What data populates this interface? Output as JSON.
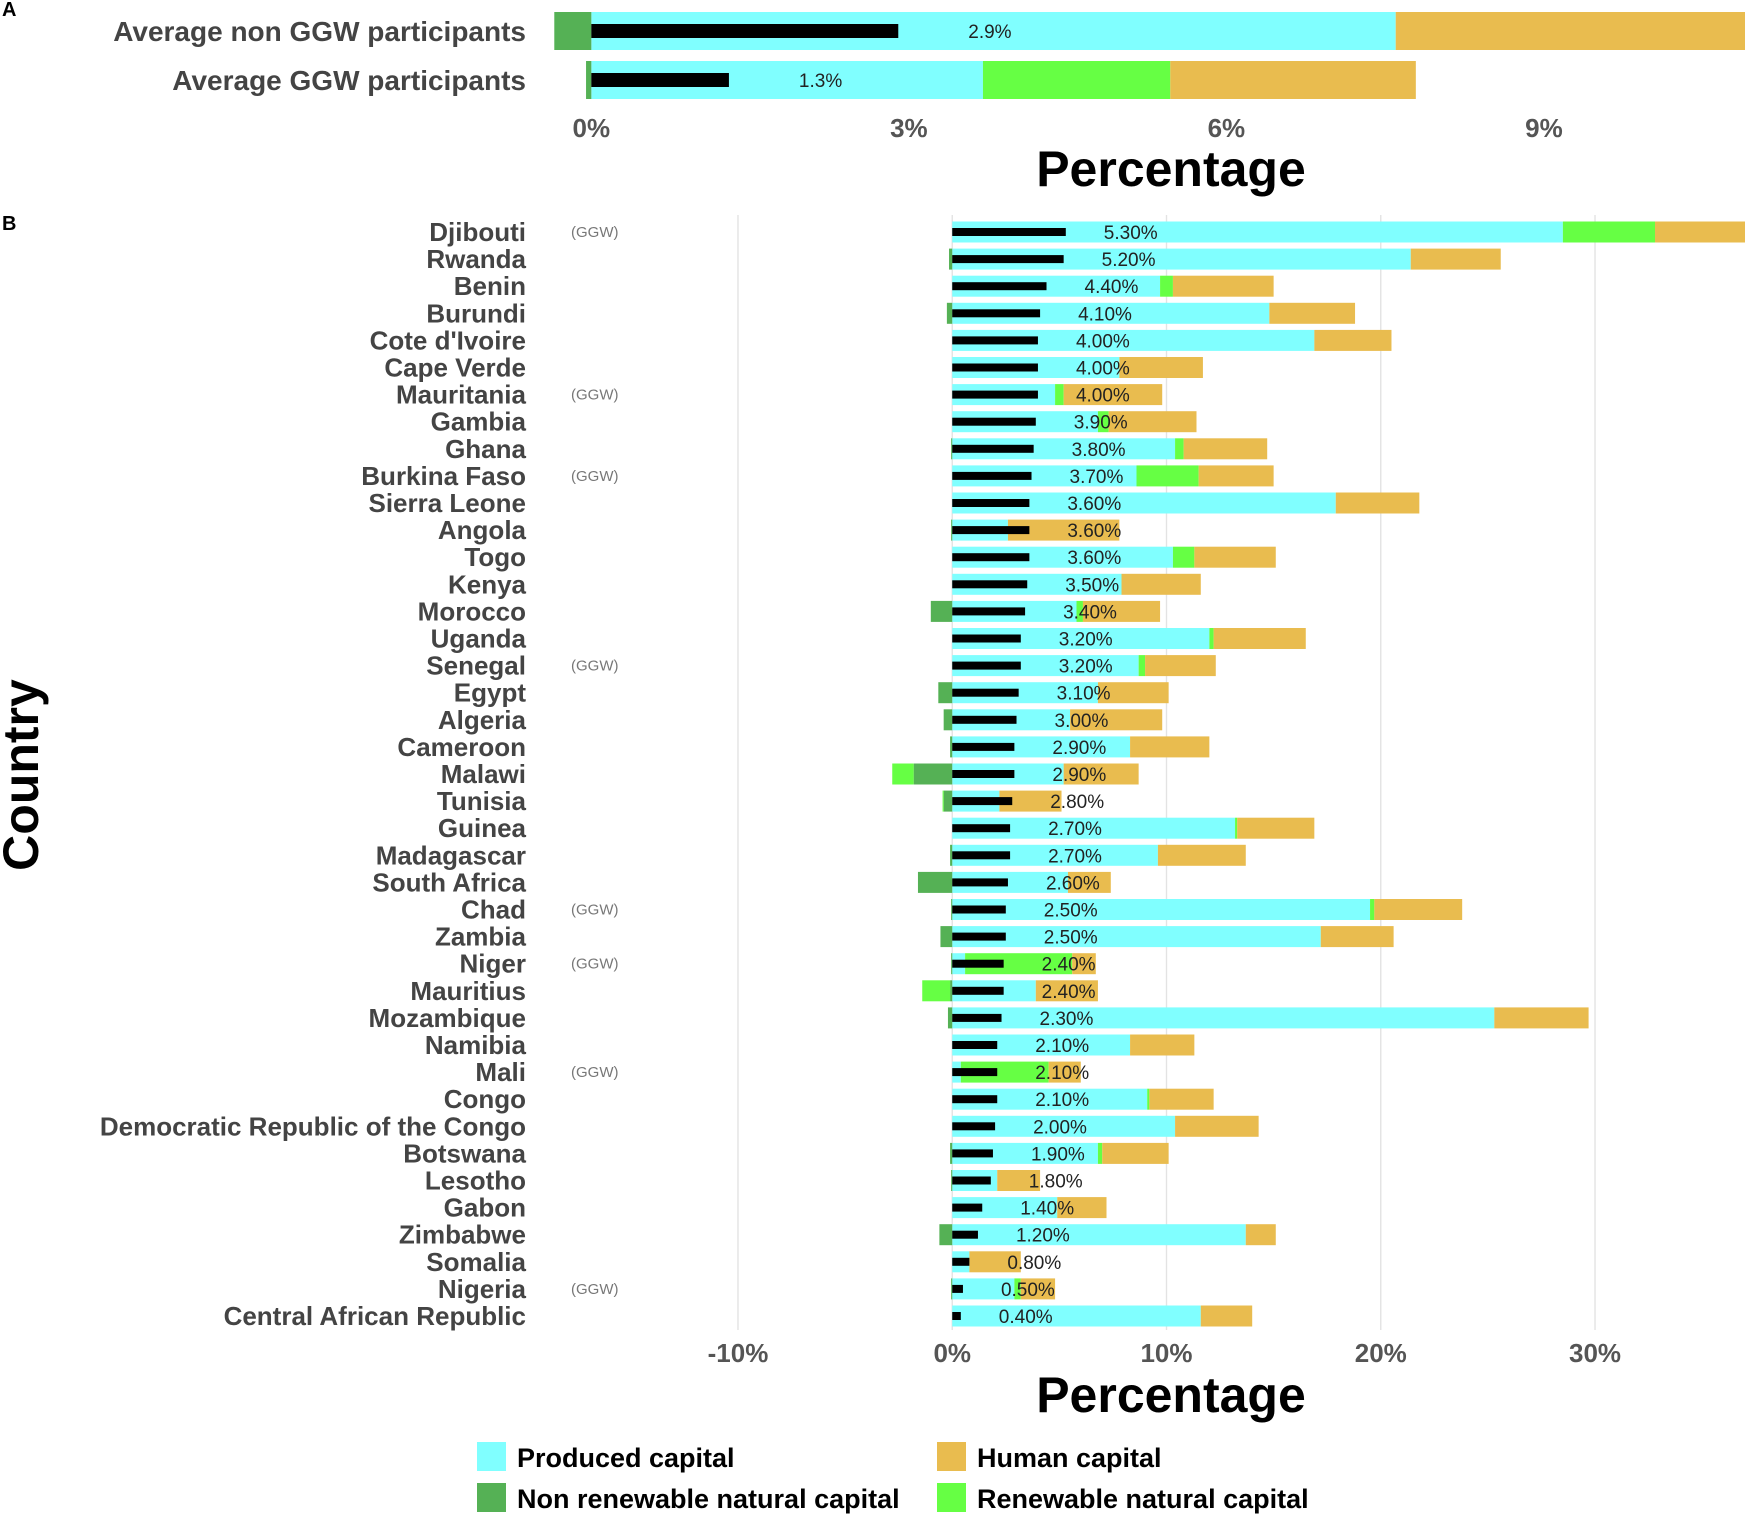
{
  "chart_data": [
    {
      "panel": "A",
      "type": "bar",
      "orientation": "horizontal",
      "stacked": true,
      "xlabel": "Percentage",
      "xlim": [
        -0.4,
        10.9
      ],
      "xticks": [
        0,
        3,
        6,
        9
      ],
      "xtick_labels": [
        "0%",
        "3%",
        "6%",
        "9%"
      ],
      "grid": false,
      "components": [
        {
          "key": "nonrenewable",
          "name": "Non renewable natural capital"
        },
        {
          "key": "produced",
          "name": "Produced capital"
        },
        {
          "key": "renewable",
          "name": "Renewable natural capital"
        },
        {
          "key": "human",
          "name": "Human capital"
        }
      ],
      "categories": [
        {
          "name": "Average non GGW participants",
          "ggw": "",
          "label": "2.9%",
          "total": 2.9,
          "nonrenewable": -0.35,
          "produced": 7.6,
          "renewable": 0.0,
          "human": 3.3
        },
        {
          "name": "Average GGW participants",
          "ggw": "",
          "label": "1.3%",
          "total": 1.3,
          "nonrenewable": -0.05,
          "produced": 3.7,
          "renewable": 1.77,
          "human": 2.32
        }
      ]
    },
    {
      "panel": "B",
      "type": "bar",
      "orientation": "horizontal",
      "stacked": true,
      "xlabel": "Percentage",
      "ylabel": "Country",
      "xlim": [
        -17,
        37
      ],
      "xticks": [
        -10,
        0,
        10,
        20,
        30
      ],
      "xtick_labels": [
        "-10%",
        "0%",
        "10%",
        "20%",
        "30%"
      ],
      "grid": true,
      "components": [
        {
          "key": "nonrenewable",
          "name": "Non renewable natural capital"
        },
        {
          "key": "produced",
          "name": "Produced capital"
        },
        {
          "key": "renewable",
          "name": "Renewable natural capital"
        },
        {
          "key": "human",
          "name": "Human capital"
        }
      ],
      "categories": [
        {
          "name": "Djibouti",
          "ggw": "(GGW)",
          "label": "5.30%",
          "total": 5.3,
          "nonrenewable": 0,
          "produced": 28.5,
          "renewable": 4.3,
          "human": 4.2
        },
        {
          "name": "Rwanda",
          "ggw": "",
          "label": "5.20%",
          "total": 5.2,
          "nonrenewable": -0.15,
          "produced": 21.4,
          "renewable": 0,
          "human": 4.2
        },
        {
          "name": "Benin",
          "ggw": "",
          "label": "4.40%",
          "total": 4.4,
          "nonrenewable": 0,
          "produced": 9.7,
          "renewable": 0.6,
          "human": 4.7
        },
        {
          "name": "Burundi",
          "ggw": "",
          "label": "4.10%",
          "total": 4.1,
          "nonrenewable": -0.25,
          "produced": 14.8,
          "renewable": 0,
          "human": 4.0
        },
        {
          "name": "Cote d'Ivoire",
          "ggw": "",
          "label": "4.00%",
          "total": 4.0,
          "nonrenewable": 0,
          "produced": 16.9,
          "renewable": 0,
          "human": 3.6
        },
        {
          "name": "Cape Verde",
          "ggw": "",
          "label": "4.00%",
          "total": 4.0,
          "nonrenewable": 0,
          "produced": 7.8,
          "renewable": 0,
          "human": 3.9
        },
        {
          "name": "Mauritania",
          "ggw": "(GGW)",
          "label": "4.00%",
          "total": 4.0,
          "nonrenewable": 0,
          "produced": 4.8,
          "renewable": 0.4,
          "human": 4.6
        },
        {
          "name": "Gambia",
          "ggw": "",
          "label": "3.90%",
          "total": 3.9,
          "nonrenewable": 0,
          "produced": 6.8,
          "renewable": 0.5,
          "human": 4.1
        },
        {
          "name": "Ghana",
          "ggw": "",
          "label": "3.80%",
          "total": 3.8,
          "nonrenewable": -0.05,
          "produced": 10.4,
          "renewable": 0.4,
          "human": 3.9
        },
        {
          "name": "Burkina Faso",
          "ggw": "(GGW)",
          "label": "3.70%",
          "total": 3.7,
          "nonrenewable": 0,
          "produced": 8.6,
          "renewable": 2.9,
          "human": 3.5
        },
        {
          "name": "Sierra Leone",
          "ggw": "",
          "label": "3.60%",
          "total": 3.6,
          "nonrenewable": 0,
          "produced": 17.9,
          "renewable": 0,
          "human": 3.9
        },
        {
          "name": "Angola",
          "ggw": "",
          "label": "3.60%",
          "total": 3.6,
          "nonrenewable": -0.05,
          "produced": 2.6,
          "renewable": 0,
          "human": 5.2
        },
        {
          "name": "Togo",
          "ggw": "",
          "label": "3.60%",
          "total": 3.6,
          "nonrenewable": 0,
          "produced": 10.3,
          "renewable": 1.0,
          "human": 3.8
        },
        {
          "name": "Kenya",
          "ggw": "",
          "label": "3.50%",
          "total": 3.5,
          "nonrenewable": 0,
          "produced": 7.9,
          "renewable": 0,
          "human": 3.7
        },
        {
          "name": "Morocco",
          "ggw": "",
          "label": "3.40%",
          "total": 3.4,
          "nonrenewable": -1.0,
          "produced": 5.8,
          "renewable": 0.3,
          "human": 3.6
        },
        {
          "name": "Uganda",
          "ggw": "",
          "label": "3.20%",
          "total": 3.2,
          "nonrenewable": 0,
          "produced": 12.0,
          "renewable": 0.2,
          "human": 4.3
        },
        {
          "name": "Senegal",
          "ggw": "(GGW)",
          "label": "3.20%",
          "total": 3.2,
          "nonrenewable": 0,
          "produced": 8.7,
          "renewable": 0.3,
          "human": 3.3
        },
        {
          "name": "Egypt",
          "ggw": "",
          "label": "3.10%",
          "total": 3.1,
          "nonrenewable": -0.65,
          "produced": 6.8,
          "renewable": 0,
          "human": 3.3
        },
        {
          "name": "Algeria",
          "ggw": "",
          "label": "3.00%",
          "total": 3.0,
          "nonrenewable": -0.4,
          "produced": 5.5,
          "renewable": 0,
          "human": 4.3
        },
        {
          "name": "Cameroon",
          "ggw": "",
          "label": "2.90%",
          "total": 2.9,
          "nonrenewable": -0.1,
          "produced": 8.3,
          "renewable": 0,
          "human": 3.7
        },
        {
          "name": "Malawi",
          "ggw": "",
          "label": "2.90%",
          "total": 2.9,
          "nonrenewable": -1.8,
          "produced": 5.2,
          "renewable": -1.0,
          "human": 3.5
        },
        {
          "name": "Tunisia",
          "ggw": "",
          "label": "2.80%",
          "total": 2.8,
          "nonrenewable": -0.4,
          "produced": 2.2,
          "renewable": -0.05,
          "human": 2.9
        },
        {
          "name": "Guinea",
          "ggw": "",
          "label": "2.70%",
          "total": 2.7,
          "nonrenewable": 0,
          "produced": 13.2,
          "renewable": 0.1,
          "human": 3.6
        },
        {
          "name": "Madagascar",
          "ggw": "",
          "label": "2.70%",
          "total": 2.7,
          "nonrenewable": -0.1,
          "produced": 9.6,
          "renewable": 0,
          "human": 4.1
        },
        {
          "name": "South Africa",
          "ggw": "",
          "label": "2.60%",
          "total": 2.6,
          "nonrenewable": -1.6,
          "produced": 5.4,
          "renewable": 0,
          "human": 2.0
        },
        {
          "name": "Chad",
          "ggw": "(GGW)",
          "label": "2.50%",
          "total": 2.5,
          "nonrenewable": -0.05,
          "produced": 19.5,
          "renewable": 0.2,
          "human": 4.1
        },
        {
          "name": "Zambia",
          "ggw": "",
          "label": "2.50%",
          "total": 2.5,
          "nonrenewable": -0.55,
          "produced": 17.2,
          "renewable": 0,
          "human": 3.4
        },
        {
          "name": "Niger",
          "ggw": "(GGW)",
          "label": "2.40%",
          "total": 2.4,
          "nonrenewable": -0.05,
          "produced": 0.6,
          "renewable": 5.0,
          "human": 1.1
        },
        {
          "name": "Mauritius",
          "ggw": "",
          "label": "2.40%",
          "total": 2.4,
          "nonrenewable": -0.1,
          "produced": 3.9,
          "renewable": -1.3,
          "human": 2.9
        },
        {
          "name": "Mozambique",
          "ggw": "",
          "label": "2.30%",
          "total": 2.3,
          "nonrenewable": -0.2,
          "produced": 25.3,
          "renewable": 0,
          "human": 4.4
        },
        {
          "name": "Namibia",
          "ggw": "",
          "label": "2.10%",
          "total": 2.1,
          "nonrenewable": 0,
          "produced": 8.3,
          "renewable": 0,
          "human": 3.0
        },
        {
          "name": "Mali",
          "ggw": "(GGW)",
          "label": "2.10%",
          "total": 2.1,
          "nonrenewable": 0,
          "produced": 0.4,
          "renewable": 4.1,
          "human": 1.5
        },
        {
          "name": "Congo",
          "ggw": "",
          "label": "2.10%",
          "total": 2.1,
          "nonrenewable": 0,
          "produced": 9.1,
          "renewable": 0.1,
          "human": 3.0
        },
        {
          "name": "Democratic Republic of the Congo",
          "ggw": "",
          "label": "2.00%",
          "total": 2.0,
          "nonrenewable": 0,
          "produced": 10.4,
          "renewable": 0,
          "human": 3.9
        },
        {
          "name": "Botswana",
          "ggw": "",
          "label": "1.90%",
          "total": 1.9,
          "nonrenewable": -0.1,
          "produced": 6.8,
          "renewable": 0.2,
          "human": 3.1
        },
        {
          "name": "Lesotho",
          "ggw": "",
          "label": "1.80%",
          "total": 1.8,
          "nonrenewable": -0.05,
          "produced": 2.1,
          "renewable": 0,
          "human": 2.0
        },
        {
          "name": "Gabon",
          "ggw": "",
          "label": "1.40%",
          "total": 1.4,
          "nonrenewable": 0,
          "produced": 4.9,
          "renewable": 0,
          "human": 2.3
        },
        {
          "name": "Zimbabwe",
          "ggw": "",
          "label": "1.20%",
          "total": 1.2,
          "nonrenewable": -0.6,
          "produced": 13.7,
          "renewable": 0,
          "human": 1.4
        },
        {
          "name": "Somalia",
          "ggw": "",
          "label": "0.80%",
          "total": 0.8,
          "nonrenewable": 0,
          "produced": 0.8,
          "renewable": 0,
          "human": 2.4
        },
        {
          "name": "Nigeria",
          "ggw": "(GGW)",
          "label": "0.50%",
          "total": 0.5,
          "nonrenewable": -0.05,
          "produced": 2.9,
          "renewable": 0.3,
          "human": 1.6
        },
        {
          "name": "Central African Republic",
          "ggw": "",
          "label": "0.40%",
          "total": 0.4,
          "nonrenewable": 0,
          "produced": 11.6,
          "renewable": 0,
          "human": 2.4
        }
      ]
    }
  ],
  "panel_letters": [
    "A",
    "B"
  ],
  "legend": [
    {
      "key": "produced",
      "label": "Produced capital",
      "color": "#80FFFF"
    },
    {
      "key": "human",
      "label": "Human capital",
      "color": "#E9BC4F"
    },
    {
      "key": "nonrenewable",
      "label": "Non renewable natural capital",
      "color": "#55B155"
    },
    {
      "key": "renewable",
      "label": "Renewable natural capital",
      "color": "#66FF44"
    }
  ],
  "colors": {
    "produced": "#80FFFF",
    "human": "#E9BC4F",
    "nonrenewable": "#55B155",
    "renewable": "#66FF44",
    "total_bar": "#000000"
  }
}
